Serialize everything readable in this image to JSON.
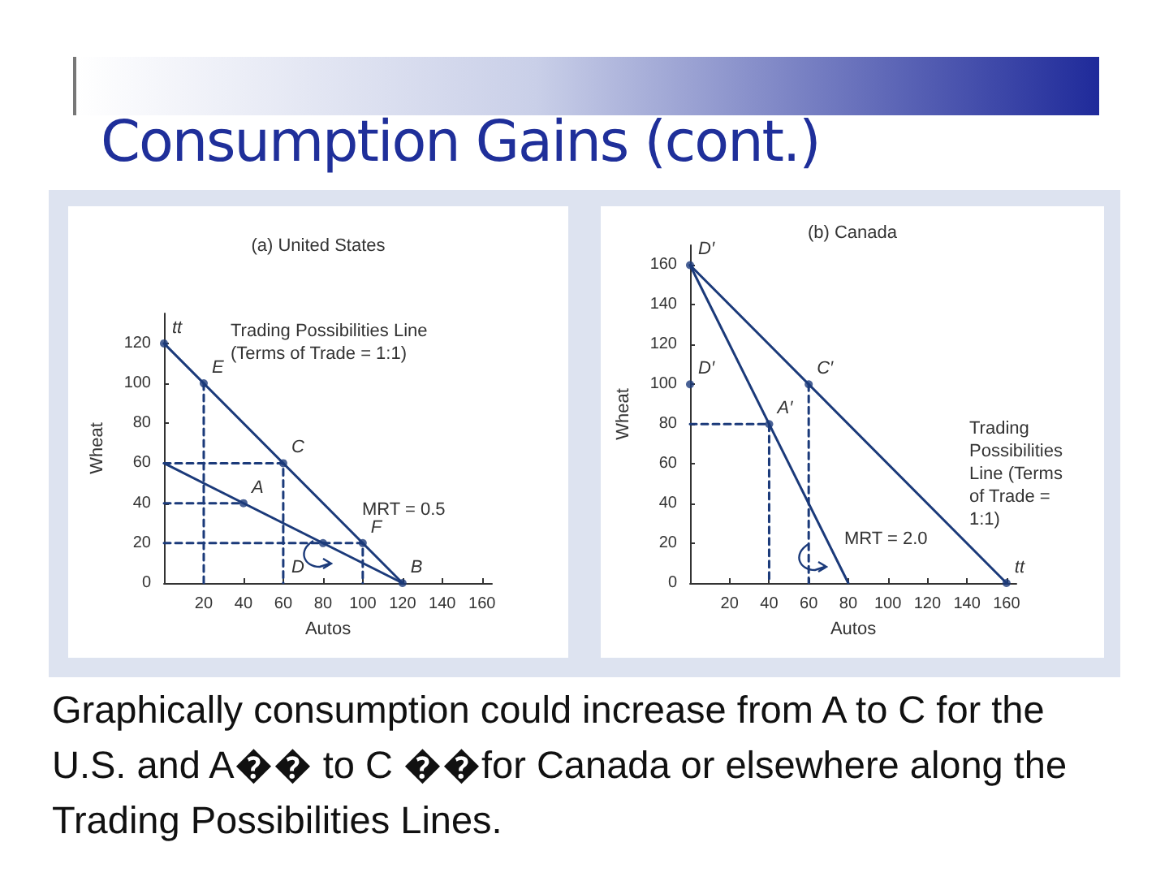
{
  "chart_data": [
    {
      "type": "line",
      "title": "(a) United States",
      "xlabel": "Autos",
      "ylabel": "Wheat",
      "xlim": [
        0,
        165
      ],
      "ylim": [
        0,
        135
      ],
      "xticks": [
        20,
        40,
        60,
        80,
        100,
        120,
        140,
        160
      ],
      "yticks": [
        0,
        20,
        40,
        60,
        80,
        100,
        120
      ],
      "grid": false,
      "series": [
        {
          "type": "line",
          "color": "#1b3a7a",
          "x": [
            0,
            120
          ],
          "values": [
            120,
            0
          ],
          "line_style": "solid",
          "marker": "none"
        },
        {
          "type": "line",
          "color": "#1b3a7a",
          "x": [
            0,
            120
          ],
          "values": [
            60,
            0
          ],
          "line_style": "solid",
          "marker": "none"
        },
        {
          "type": "line",
          "color": "#1b3a7a",
          "x": [
            20,
            20
          ],
          "values": [
            100,
            0
          ],
          "line_style": "dashed",
          "marker": "none"
        },
        {
          "type": "line",
          "color": "#1b3a7a",
          "x": [
            0,
            60,
            60
          ],
          "values": [
            60,
            60,
            0
          ],
          "line_style": "dashed",
          "marker": "none"
        },
        {
          "type": "line",
          "color": "#1b3a7a",
          "x": [
            0,
            40
          ],
          "values": [
            40,
            40
          ],
          "line_style": "dashed",
          "marker": "none"
        },
        {
          "type": "line",
          "color": "#1b3a7a",
          "x": [
            0,
            100,
            100
          ],
          "values": [
            20,
            20,
            0
          ],
          "line_style": "dashed",
          "marker": "none"
        },
        {
          "type": "scatter",
          "color": "#1b3a7a",
          "x": [
            0,
            20,
            60,
            40,
            80,
            100,
            120
          ],
          "values": [
            120,
            100,
            60,
            40,
            20,
            20,
            0
          ],
          "marker": "circle"
        }
      ],
      "annotations": [
        "Consumption Gains (cont.)",
        "Graphically consumption could increase from A to C for the U.S. and A�� to C ��for Canada or elsewhere along the Trading Possibilities Lines.",
        "Trading Possibilities Line (Terms of Trade = 1:1)",
        "MRT = 0.5",
        {
          "text": "tt",
          "x": 0,
          "y": 120
        },
        {
          "text": "E",
          "x": 20,
          "y": 100
        },
        {
          "text": "C",
          "x": 60,
          "y": 60
        },
        {
          "text": "A",
          "x": 40,
          "y": 40
        },
        {
          "text": "F",
          "x": 100,
          "y": 20
        },
        {
          "text": "D",
          "x": 60,
          "y": 0
        },
        {
          "text": "B",
          "x": 120,
          "y": 0
        }
      ]
    },
    {
      "type": "line",
      "title": "(b) Canada",
      "xlabel": "Autos",
      "ylabel": "Wheat",
      "xlim": [
        0,
        165
      ],
      "ylim": [
        0,
        170
      ],
      "xticks": [
        20,
        40,
        60,
        80,
        100,
        120,
        140,
        160
      ],
      "yticks": [
        0,
        20,
        40,
        60,
        80,
        100,
        120,
        140,
        160
      ],
      "grid": false,
      "series": [
        {
          "type": "line",
          "color": "#1b3a7a",
          "x": [
            0,
            160
          ],
          "values": [
            160,
            0
          ],
          "line_style": "solid",
          "marker": "none"
        },
        {
          "type": "line",
          "color": "#1b3a7a",
          "x": [
            0,
            80
          ],
          "values": [
            160,
            0
          ],
          "line_style": "solid",
          "marker": "none"
        },
        {
          "type": "line",
          "color": "#1b3a7a",
          "x": [
            0,
            40,
            40
          ],
          "values": [
            80,
            80,
            0
          ],
          "line_style": "dashed",
          "marker": "none"
        },
        {
          "type": "line",
          "color": "#1b3a7a",
          "x": [
            60,
            60
          ],
          "values": [
            100,
            0
          ],
          "line_style": "dashed",
          "marker": "none"
        },
        {
          "type": "scatter",
          "color": "#1b3a7a",
          "x": [
            0,
            0,
            40,
            60,
            160
          ],
          "values": [
            160,
            100,
            80,
            100,
            0
          ],
          "marker": "circle"
        }
      ],
      "annotations": [
        "Trading Possibilities Line (Terms of Trade = 1:1)",
        "MRT = 2.0",
        {
          "text": "D′",
          "x": 0,
          "y": 160
        },
        {
          "text": "D′",
          "x": 0,
          "y": 100
        },
        {
          "text": "C′",
          "x": 60,
          "y": 100
        },
        {
          "text": "A′",
          "x": 40,
          "y": 80
        },
        {
          "text": "tt",
          "x": 160,
          "y": 0
        }
      ]
    }
  ]
}
